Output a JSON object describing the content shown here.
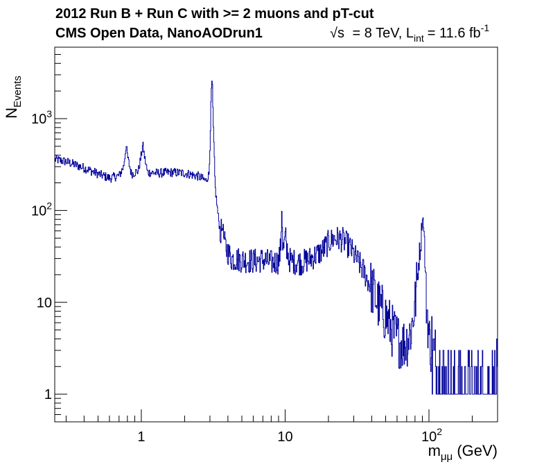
{
  "title": {
    "line1": "2012 Run B + Run C with >= 2 muons and pT-cut",
    "line2_left": "CMS Open Data, NanoAODrun1",
    "line2_right": {
      "sqrt": "√s",
      "energy": "= 8 TeV, L",
      "lumi_sub": "int",
      "lumi": "= 11.6 fb",
      "lumi_sup": "-1"
    }
  },
  "chart_data": {
    "type": "line",
    "style": "step-histogram",
    "xscale": "log",
    "yscale": "log",
    "xlim": [
      0.25,
      300
    ],
    "ylim": [
      0.5,
      6000
    ],
    "xlabel": {
      "base": "m",
      "sub": "μμ",
      "suffix": " (GeV)"
    },
    "ylabel": {
      "base": "N",
      "sub": "Events"
    },
    "x_ticks": [
      {
        "value": 1,
        "label": "1"
      },
      {
        "value": 10,
        "label": "10"
      },
      {
        "value": 100,
        "base": "10",
        "sup": "2"
      }
    ],
    "y_ticks": [
      {
        "value": 1,
        "label": "1"
      },
      {
        "value": 10,
        "label": "10"
      },
      {
        "value": 100,
        "base": "10",
        "sup": "2"
      },
      {
        "value": 1000,
        "base": "10",
        "sup": "3"
      }
    ],
    "line_color": "#000099",
    "series": [
      {
        "x": [
          0.25,
          0.3,
          0.4,
          0.5,
          0.6,
          0.7,
          0.75,
          0.77,
          0.78,
          0.8,
          0.85,
          0.95,
          0.99,
          1.02,
          1.05,
          1.1,
          1.3,
          1.6,
          2.0,
          2.5,
          2.8,
          2.95,
          3.0,
          3.05,
          3.097,
          3.15,
          3.25,
          3.4,
          3.55,
          3.686,
          3.75,
          3.9,
          4.2,
          5,
          6,
          7,
          8,
          9,
          9.3,
          9.46,
          9.6,
          9.8,
          10.02,
          10.2,
          10.355,
          10.5,
          11,
          13,
          15,
          18,
          20,
          22,
          25,
          28,
          30,
          35,
          40,
          45,
          50,
          55,
          60,
          65,
          70,
          75,
          80,
          85,
          88,
          90,
          91.2,
          93,
          95,
          100,
          110,
          120,
          150,
          200,
          300
        ],
        "y": [
          360,
          340,
          290,
          250,
          225,
          240,
          300,
          420,
          520,
          380,
          250,
          270,
          380,
          520,
          380,
          260,
          255,
          260,
          255,
          235,
          210,
          250,
          600,
          1800,
          2800,
          900,
          180,
          90,
          55,
          70,
          45,
          38,
          30,
          29,
          28,
          29,
          27,
          28,
          40,
          110,
          38,
          40,
          55,
          33,
          40,
          30,
          28,
          27,
          30,
          36,
          45,
          50,
          48,
          40,
          33,
          22,
          14,
          9,
          7,
          5,
          4,
          3.5,
          3.8,
          5,
          10,
          30,
          50,
          85,
          75,
          40,
          12,
          4,
          2,
          1.5,
          1,
          1,
          1
        ]
      }
    ]
  }
}
